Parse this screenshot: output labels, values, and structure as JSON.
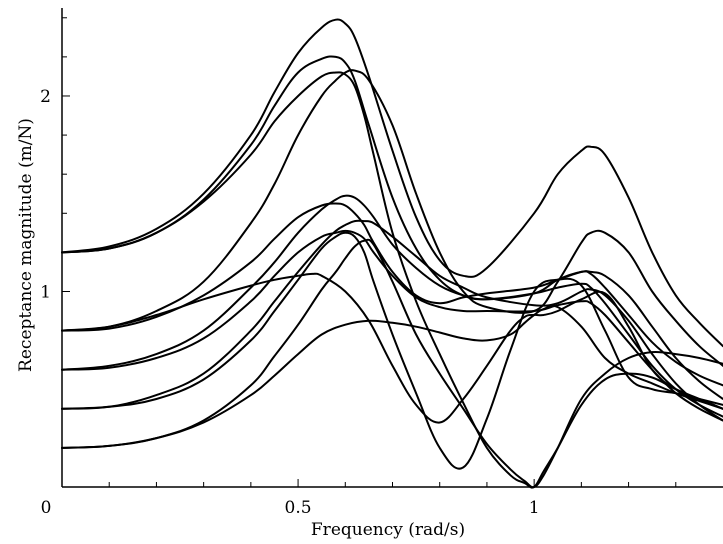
{
  "chart_data": {
    "type": "line",
    "title": "",
    "xlabel": "Frequency (rad/s)",
    "ylabel": "Receptance magnitude (m/N)",
    "xlim": [
      0,
      1.4
    ],
    "ylim": [
      0,
      2.45
    ],
    "x_ticks": [
      {
        "value": 0,
        "label": "0"
      },
      {
        "value": 0.5,
        "label": "0.5"
      },
      {
        "value": 1,
        "label": "1"
      }
    ],
    "y_ticks": [
      {
        "value": 1,
        "label": "1"
      },
      {
        "value": 2,
        "label": "2"
      }
    ],
    "x_minor_step": 0.1,
    "y_minor_step": 0.2,
    "grid": false,
    "series": [
      {
        "x": [
          0,
          0.1,
          0.2,
          0.3,
          0.4,
          0.45,
          0.5,
          0.55,
          0.58,
          0.6,
          0.62,
          0.65,
          0.7,
          0.75,
          0.8,
          0.85,
          0.9,
          1.0,
          1.05,
          1.1,
          1.12,
          1.15,
          1.2,
          1.25,
          1.3,
          1.35,
          1.4
        ],
        "values": [
          1.2,
          1.23,
          1.32,
          1.5,
          1.8,
          2.02,
          2.22,
          2.35,
          2.39,
          2.37,
          2.3,
          2.1,
          1.72,
          1.38,
          1.16,
          1.08,
          1.12,
          1.4,
          1.6,
          1.72,
          1.74,
          1.7,
          1.48,
          1.2,
          0.98,
          0.84,
          0.72
        ]
      },
      {
        "x": [
          0,
          0.1,
          0.2,
          0.3,
          0.4,
          0.45,
          0.5,
          0.55,
          0.58,
          0.6,
          0.62,
          0.65,
          0.7,
          0.75,
          0.8,
          0.85,
          0.9,
          1.0,
          1.05,
          1.1,
          1.12,
          1.15,
          1.2,
          1.25,
          1.3,
          1.35,
          1.4
        ],
        "values": [
          1.2,
          1.22,
          1.3,
          1.47,
          1.75,
          1.95,
          2.12,
          2.19,
          2.2,
          2.17,
          2.08,
          1.85,
          1.48,
          1.22,
          1.06,
          0.98,
          0.96,
          0.99,
          1.06,
          1.1,
          1.09,
          1.02,
          0.88,
          0.74,
          0.64,
          0.57,
          0.52
        ]
      },
      {
        "x": [
          0,
          0.1,
          0.2,
          0.3,
          0.4,
          0.45,
          0.5,
          0.55,
          0.58,
          0.6,
          0.62,
          0.65,
          0.7,
          0.75,
          0.8,
          0.85,
          0.9,
          1.0,
          1.05,
          1.1,
          1.12,
          1.15,
          1.2,
          1.25,
          1.3,
          1.35,
          1.4
        ],
        "values": [
          0.8,
          0.82,
          0.9,
          1.05,
          1.35,
          1.55,
          1.8,
          2.0,
          2.08,
          2.12,
          2.13,
          2.08,
          1.85,
          1.5,
          1.2,
          1.0,
          0.92,
          0.9,
          1.05,
          1.25,
          1.3,
          1.3,
          1.2,
          1.0,
          0.85,
          0.72,
          0.62
        ]
      },
      {
        "x": [
          0,
          0.1,
          0.2,
          0.3,
          0.4,
          0.45,
          0.5,
          0.55,
          0.58,
          0.6,
          0.62,
          0.64,
          0.66,
          0.7,
          0.75,
          0.8,
          0.85,
          0.9,
          1.0,
          1.05,
          1.1,
          1.12,
          1.15,
          1.2,
          1.25,
          1.3,
          1.35,
          1.4
        ],
        "values": [
          0.6,
          0.62,
          0.68,
          0.8,
          1.02,
          1.15,
          1.3,
          1.42,
          1.47,
          1.49,
          1.48,
          1.44,
          1.38,
          1.24,
          1.12,
          1.03,
          0.98,
          0.96,
          0.99,
          1.02,
          1.04,
          1.02,
          0.94,
          0.78,
          0.62,
          0.5,
          0.42,
          0.36
        ]
      },
      {
        "x": [
          0,
          0.1,
          0.2,
          0.3,
          0.4,
          0.45,
          0.5,
          0.55,
          0.58,
          0.6,
          0.62,
          0.64,
          0.66,
          0.7,
          0.75,
          0.8,
          0.85,
          0.9,
          1.0,
          1.05,
          1.1,
          1.12,
          1.15,
          1.2,
          1.25,
          1.3,
          1.35,
          1.4
        ],
        "values": [
          0.8,
          0.81,
          0.87,
          0.98,
          1.15,
          1.27,
          1.38,
          1.44,
          1.45,
          1.44,
          1.4,
          1.34,
          1.25,
          1.1,
          0.98,
          0.94,
          0.97,
          0.99,
          1.02,
          1.06,
          1.1,
          1.1,
          1.08,
          0.98,
          0.82,
          0.66,
          0.54,
          0.45
        ]
      },
      {
        "x": [
          0,
          0.1,
          0.2,
          0.3,
          0.4,
          0.45,
          0.5,
          0.55,
          0.58,
          0.6,
          0.62,
          0.64,
          0.66,
          0.7,
          0.75,
          0.8,
          0.85,
          0.9,
          1.0,
          1.05,
          1.1,
          1.12,
          1.15,
          1.2,
          1.25,
          1.3,
          1.35,
          1.4
        ],
        "values": [
          0.6,
          0.61,
          0.66,
          0.76,
          0.95,
          1.08,
          1.2,
          1.28,
          1.3,
          1.31,
          1.3,
          1.27,
          1.2,
          1.08,
          0.97,
          0.92,
          0.9,
          0.9,
          0.9,
          0.93,
          0.95,
          0.94,
          0.88,
          0.74,
          0.6,
          0.48,
          0.4,
          0.34
        ]
      },
      {
        "x": [
          0,
          0.1,
          0.2,
          0.3,
          0.4,
          0.45,
          0.5,
          0.55,
          0.58,
          0.6,
          0.62,
          0.64,
          0.66,
          0.7,
          0.75,
          0.8,
          0.85,
          0.9,
          1.0,
          1.05,
          1.1,
          1.12,
          1.15,
          1.2,
          1.25,
          1.3,
          1.35,
          1.4
        ],
        "values": [
          0.4,
          0.41,
          0.47,
          0.58,
          0.8,
          0.95,
          1.1,
          1.24,
          1.31,
          1.34,
          1.36,
          1.36,
          1.35,
          1.28,
          1.18,
          1.08,
          1.02,
          0.97,
          0.93,
          0.94,
          1.0,
          1.01,
          0.98,
          0.85,
          0.68,
          0.53,
          0.42,
          0.34
        ]
      },
      {
        "x": [
          0,
          0.1,
          0.2,
          0.3,
          0.4,
          0.45,
          0.5,
          0.55,
          0.58,
          0.6,
          0.62,
          0.64,
          0.66,
          0.7,
          0.75,
          0.8,
          0.85,
          0.9,
          0.95,
          1.0,
          1.05,
          1.1,
          1.15,
          1.2,
          1.25,
          1.3,
          1.35,
          1.4
        ],
        "values": [
          0.4,
          0.41,
          0.45,
          0.55,
          0.75,
          0.9,
          1.06,
          1.22,
          1.28,
          1.3,
          1.28,
          1.2,
          1.05,
          0.78,
          0.48,
          0.2,
          0.1,
          0.35,
          0.7,
          1.0,
          1.06,
          1.03,
          0.8,
          0.56,
          0.5,
          0.48,
          0.45,
          0.42
        ]
      },
      {
        "x": [
          0,
          0.1,
          0.2,
          0.3,
          0.4,
          0.45,
          0.5,
          0.55,
          0.58,
          0.6,
          0.62,
          0.64,
          0.66,
          0.7,
          0.75,
          0.8,
          0.85,
          0.9,
          0.95,
          0.98,
          1.0,
          1.02,
          1.05,
          1.1,
          1.15,
          1.2,
          1.25,
          1.3,
          1.35,
          1.4
        ],
        "values": [
          0.2,
          0.21,
          0.25,
          0.34,
          0.52,
          0.67,
          0.83,
          1.01,
          1.1,
          1.17,
          1.23,
          1.26,
          1.24,
          1.05,
          0.78,
          0.58,
          0.4,
          0.22,
          0.09,
          0.03,
          0.0,
          0.06,
          0.2,
          0.45,
          0.58,
          0.66,
          0.69,
          0.68,
          0.66,
          0.63
        ]
      },
      {
        "x": [
          0,
          0.1,
          0.2,
          0.3,
          0.4,
          0.45,
          0.5,
          0.53,
          0.55,
          0.6,
          0.65,
          0.7,
          0.75,
          0.8,
          0.85,
          0.9,
          0.95,
          0.98,
          1.0,
          1.02,
          1.05,
          1.1,
          1.15,
          1.2,
          1.25,
          1.3,
          1.35,
          1.4
        ],
        "values": [
          0.8,
          0.82,
          0.88,
          0.96,
          1.03,
          1.06,
          1.08,
          1.09,
          1.08,
          1.0,
          0.85,
          0.62,
          0.42,
          0.33,
          0.45,
          0.62,
          0.8,
          0.87,
          0.88,
          0.88,
          0.9,
          0.96,
          0.99,
          0.82,
          0.6,
          0.5,
          0.45,
          0.4
        ]
      },
      {
        "x": [
          0,
          0.1,
          0.2,
          0.3,
          0.4,
          0.45,
          0.5,
          0.55,
          0.6,
          0.65,
          0.7,
          0.75,
          0.8,
          0.85,
          0.9,
          0.95,
          0.98,
          1.0,
          1.02,
          1.05,
          1.1,
          1.15,
          1.2,
          1.25,
          1.3,
          1.35,
          1.4
        ],
        "values": [
          0.2,
          0.21,
          0.25,
          0.33,
          0.47,
          0.57,
          0.68,
          0.78,
          0.83,
          0.85,
          0.84,
          0.82,
          0.79,
          0.76,
          0.75,
          0.78,
          0.84,
          0.88,
          0.91,
          0.92,
          0.82,
          0.66,
          0.58,
          0.53,
          0.48,
          0.44,
          0.4
        ]
      },
      {
        "x": [
          0,
          0.1,
          0.2,
          0.3,
          0.4,
          0.45,
          0.5,
          0.55,
          0.58,
          0.6,
          0.62,
          0.64,
          0.66,
          0.7,
          0.75,
          0.8,
          0.85,
          0.9,
          0.95,
          0.98,
          1.0,
          1.02,
          1.05,
          1.1,
          1.15,
          1.2,
          1.25,
          1.3,
          1.35,
          1.4
        ],
        "values": [
          1.2,
          1.22,
          1.3,
          1.46,
          1.7,
          1.87,
          2.0,
          2.1,
          2.12,
          2.11,
          2.05,
          1.9,
          1.7,
          1.3,
          0.95,
          0.68,
          0.43,
          0.2,
          0.06,
          0.02,
          0.0,
          0.08,
          0.2,
          0.42,
          0.55,
          0.58,
          0.56,
          0.5,
          0.45,
          0.4
        ]
      }
    ]
  }
}
